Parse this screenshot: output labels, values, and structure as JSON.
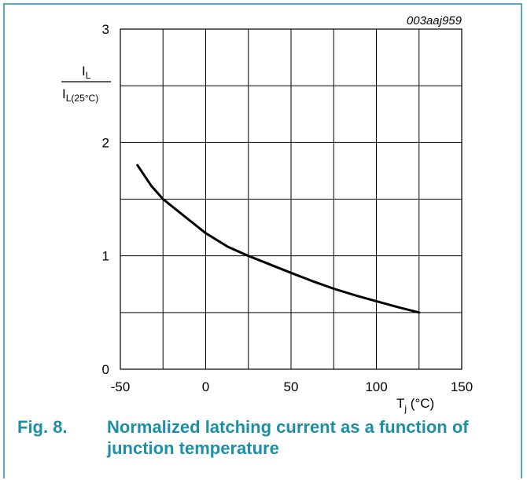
{
  "figure_id": "003aaj959",
  "caption": {
    "number": "Fig. 8.",
    "title": "Normalized latching current as a function of junction temperature"
  },
  "chart_data": {
    "type": "line",
    "xlabel": "Tj (°C)",
    "ylabel": "IL / IL(25°C)",
    "xlim": [
      -50,
      150
    ],
    "ylim": [
      0,
      3
    ],
    "xticks": [
      -50,
      0,
      50,
      100,
      150
    ],
    "yticks": [
      0,
      1,
      2,
      3
    ],
    "grid": true,
    "series": [
      {
        "x": [
          -40,
          -32,
          -25,
          -15,
          0,
          13,
          25,
          40,
          50,
          62,
          75,
          88,
          100,
          112,
          125
        ],
        "y": [
          1.8,
          1.62,
          1.5,
          1.38,
          1.2,
          1.08,
          1.0,
          0.91,
          0.85,
          0.78,
          0.71,
          0.65,
          0.6,
          0.55,
          0.5
        ]
      }
    ]
  }
}
